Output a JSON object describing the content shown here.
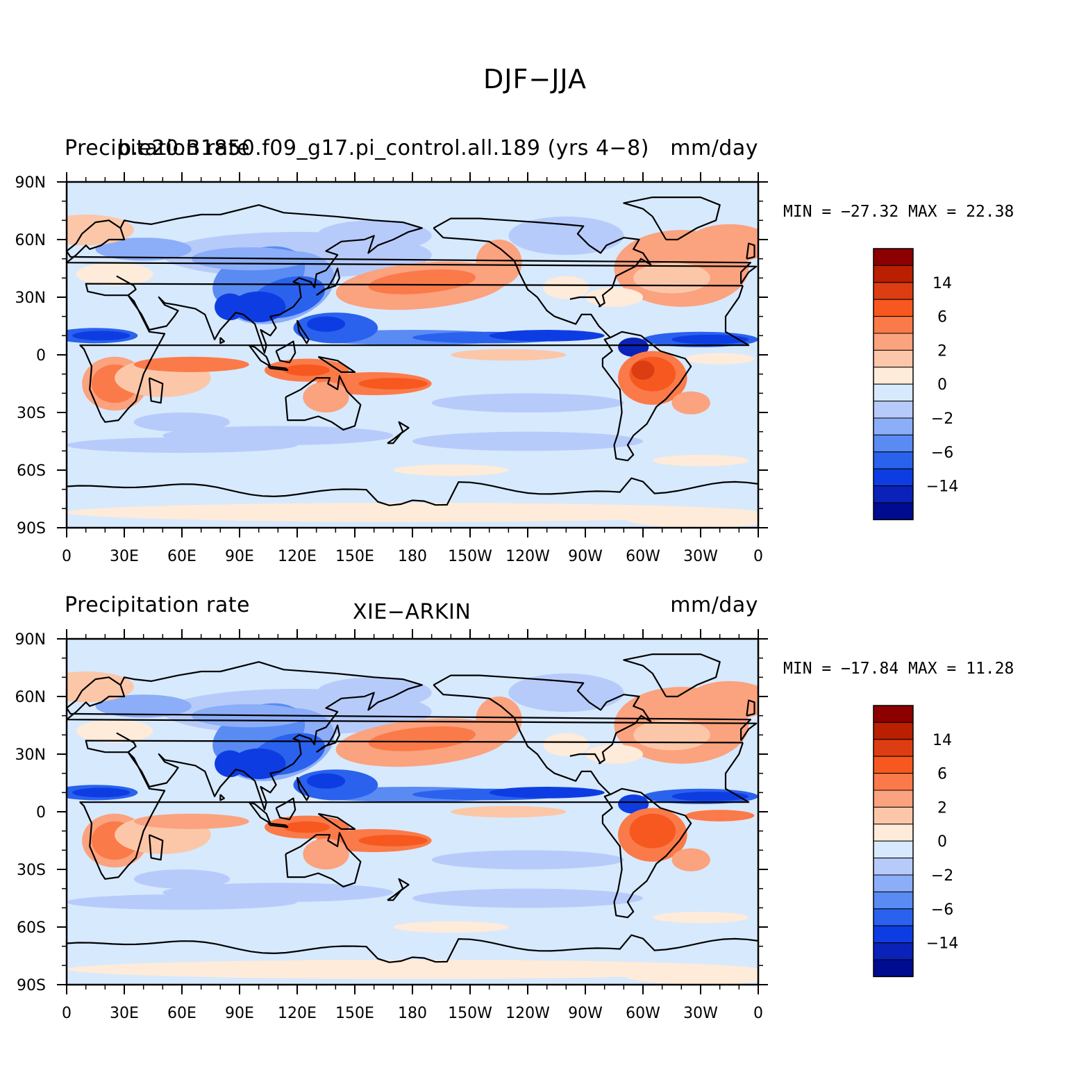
{
  "title": "DJF−JJA",
  "panels": [
    {
      "left_text": "Precipitation rate",
      "center_text": "b.e20.B1850.f09_g17.pi_control.all.189 (yrs 4−8)",
      "right_text": "mm/day",
      "min_max": "MIN = −27.32 MAX =   22.38",
      "variant": "model"
    },
    {
      "left_text": "Precipitation rate",
      "center_text": "XIE−ARKIN",
      "right_text": "mm/day",
      "min_max": "MIN = −17.84 MAX =   11.28",
      "variant": "obs"
    }
  ],
  "axes": {
    "lat_ticks": [
      "90N",
      "60N",
      "30N",
      "0",
      "30S",
      "60S",
      "90S"
    ],
    "lon_ticks": [
      "0",
      "30E",
      "60E",
      "90E",
      "120E",
      "150E",
      "180",
      "150W",
      "120W",
      "90W",
      "60W",
      "30W",
      "0"
    ]
  },
  "colorbar": {
    "colors": [
      "#8c0000",
      "#b91f00",
      "#dd3d12",
      "#f6581f",
      "#fb7a49",
      "#fba27e",
      "#fbc7a8",
      "#feebd9",
      "#d7e9fd",
      "#b7cbfb",
      "#8caef8",
      "#5a8bf3",
      "#2a62ee",
      "#0d3de2",
      "#0b22b9",
      "#000c8f"
    ],
    "labels": [
      {
        "text": "14",
        "boundary": 2
      },
      {
        "text": "6",
        "boundary": 4
      },
      {
        "text": "2",
        "boundary": 6
      },
      {
        "text": "0",
        "boundary": 8
      },
      {
        "text": "−2",
        "boundary": 10
      },
      {
        "text": "−6",
        "boundary": 12
      },
      {
        "text": "−14",
        "boundary": 14
      }
    ]
  },
  "colors": {
    "coastline": "#000000",
    "ocean_background": "#d7e9fd"
  }
}
